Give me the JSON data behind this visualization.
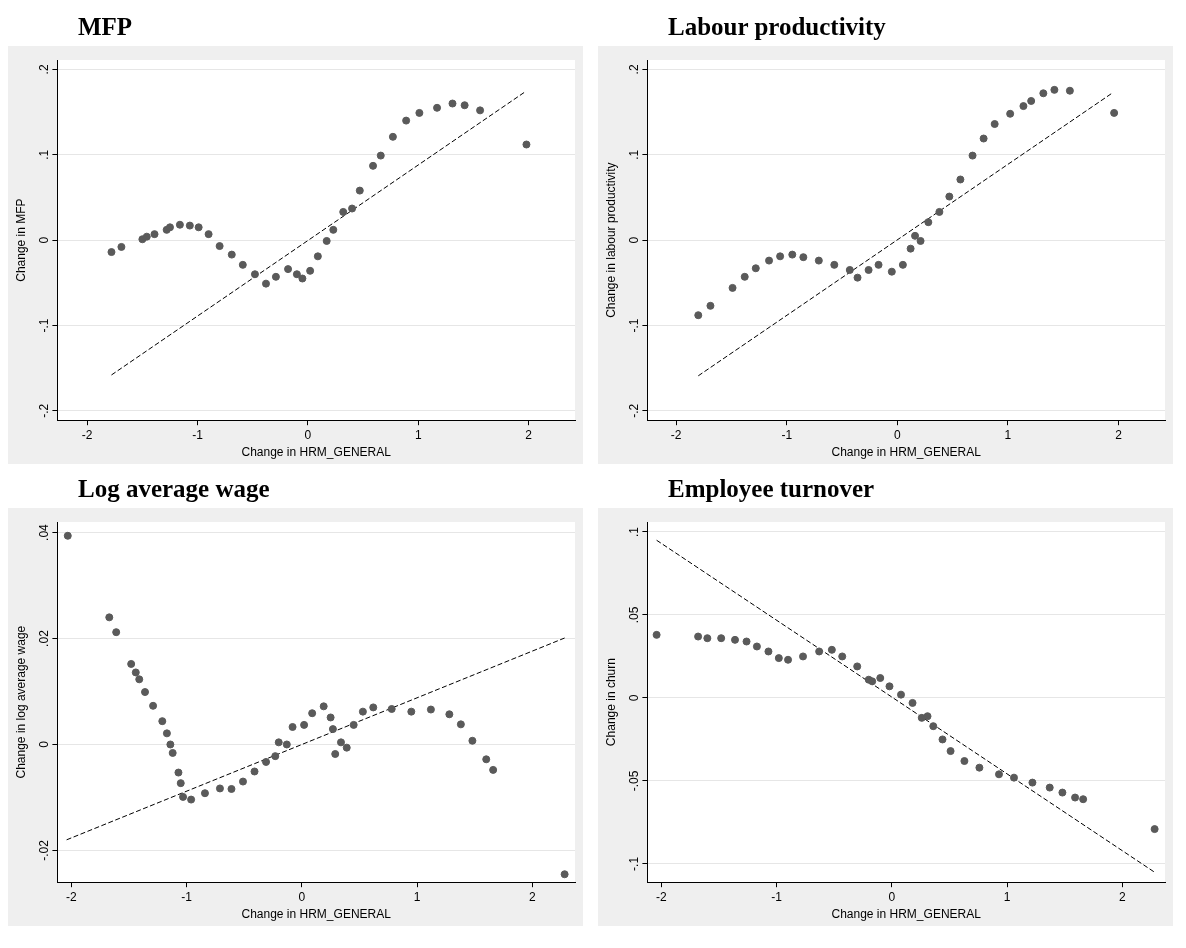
{
  "chart_data": [
    {
      "type": "scatter",
      "title": "MFP",
      "xlabel": "Change in HRM_GENERAL",
      "ylabel": "Change in MFP",
      "xlim": [
        -2.27,
        2.42
      ],
      "xticks": [
        -2,
        -1,
        0,
        1,
        2
      ],
      "ylim": [
        -0.211,
        0.211
      ],
      "yticks": [
        {
          "value": -0.2,
          "label": "-.2"
        },
        {
          "value": -0.1,
          "label": "-.1"
        },
        {
          "value": 0,
          "label": "0"
        },
        {
          "value": 0.1,
          "label": ".1"
        },
        {
          "value": 0.2,
          "label": ".2"
        }
      ],
      "grid": "y",
      "legend": false,
      "series": [
        {
          "type": "scatter",
          "marker": "circle",
          "color": "#5a5a5a",
          "x": [
            -1.78,
            -1.69,
            -1.5,
            -1.46,
            -1.39,
            -1.28,
            -1.25,
            -1.16,
            -1.07,
            -0.99,
            -0.9,
            -0.8,
            -0.69,
            -0.59,
            -0.48,
            -0.38,
            -0.29,
            -0.18,
            -0.1,
            -0.05,
            0.02,
            0.09,
            0.17,
            0.23,
            0.32,
            0.4,
            0.47,
            0.59,
            0.66,
            0.77,
            0.89,
            1.01,
            1.17,
            1.31,
            1.42,
            1.56,
            1.98
          ],
          "values": [
            -0.014,
            -0.008,
            0.001,
            0.004,
            0.007,
            0.012,
            0.015,
            0.018,
            0.017,
            0.015,
            0.007,
            -0.007,
            -0.017,
            -0.029,
            -0.04,
            -0.051,
            -0.043,
            -0.034,
            -0.04,
            -0.045,
            -0.036,
            -0.019,
            -0.001,
            0.012,
            0.033,
            0.037,
            0.058,
            0.087,
            0.099,
            0.121,
            0.14,
            0.149,
            0.155,
            0.16,
            0.158,
            0.152,
            0.112
          ]
        },
        {
          "type": "line",
          "color": "#000000",
          "line_style": "dashed",
          "x": [
            -1.78,
            1.96
          ],
          "values": [
            -0.158,
            0.173
          ]
        }
      ]
    },
    {
      "type": "scatter",
      "title": "Labour productivity",
      "xlabel": "Change in HRM_GENERAL",
      "ylabel": "Change in labour productivity",
      "xlim": [
        -2.26,
        2.42
      ],
      "xticks": [
        -2,
        -1,
        0,
        1,
        2
      ],
      "ylim": [
        -0.211,
        0.211
      ],
      "yticks": [
        {
          "value": -0.2,
          "label": "-.2"
        },
        {
          "value": -0.1,
          "label": "-.1"
        },
        {
          "value": 0,
          "label": "0"
        },
        {
          "value": 0.1,
          "label": ".1"
        },
        {
          "value": 0.2,
          "label": ".2"
        }
      ],
      "grid": "y",
      "legend": false,
      "series": [
        {
          "type": "scatter",
          "marker": "circle",
          "color": "#5a5a5a",
          "x": [
            -1.8,
            -1.69,
            -1.49,
            -1.38,
            -1.28,
            -1.16,
            -1.06,
            -0.95,
            -0.85,
            -0.71,
            -0.57,
            -0.43,
            -0.36,
            -0.26,
            -0.17,
            -0.05,
            0.05,
            0.12,
            0.16,
            0.21,
            0.28,
            0.38,
            0.47,
            0.57,
            0.68,
            0.78,
            0.88,
            1.02,
            1.14,
            1.21,
            1.32,
            1.42,
            1.56,
            1.96
          ],
          "values": [
            -0.088,
            -0.077,
            -0.056,
            -0.043,
            -0.033,
            -0.024,
            -0.019,
            -0.017,
            -0.02,
            -0.024,
            -0.029,
            -0.035,
            -0.044,
            -0.035,
            -0.029,
            -0.037,
            -0.029,
            -0.01,
            0.005,
            -0.001,
            0.021,
            0.033,
            0.051,
            0.071,
            0.099,
            0.119,
            0.136,
            0.148,
            0.157,
            0.163,
            0.172,
            0.176,
            0.175,
            0.149
          ]
        },
        {
          "type": "line",
          "color": "#000000",
          "line_style": "dashed",
          "x": [
            -1.8,
            1.94
          ],
          "values": [
            -0.159,
            0.172
          ]
        }
      ]
    },
    {
      "type": "scatter",
      "title": "Log average wage",
      "xlabel": "Change in HRM_GENERAL",
      "ylabel": "Change in log average wage",
      "xlim": [
        -2.12,
        2.37
      ],
      "xticks": [
        -2,
        -1,
        0,
        1,
        2
      ],
      "ylim": [
        -0.026,
        0.042
      ],
      "yticks": [
        {
          "value": -0.02,
          "label": "-.02"
        },
        {
          "value": 0,
          "label": "0"
        },
        {
          "value": 0.02,
          "label": ".02"
        },
        {
          "value": 0.04,
          "label": ".04"
        }
      ],
      "grid": "y",
      "legend": false,
      "series": [
        {
          "type": "scatter",
          "marker": "circle",
          "color": "#5a5a5a",
          "x": [
            -2.03,
            -1.67,
            -1.61,
            -1.48,
            -1.44,
            -1.41,
            -1.36,
            -1.29,
            -1.21,
            -1.17,
            -1.14,
            -1.12,
            -1.07,
            -1.05,
            -1.03,
            -0.96,
            -0.84,
            -0.71,
            -0.61,
            -0.51,
            -0.41,
            -0.31,
            -0.23,
            -0.2,
            -0.13,
            -0.08,
            0.02,
            0.09,
            0.19,
            0.25,
            0.27,
            0.29,
            0.34,
            0.39,
            0.45,
            0.53,
            0.62,
            0.78,
            0.95,
            1.12,
            1.28,
            1.38,
            1.48,
            1.6,
            1.66,
            2.28
          ],
          "values": [
            0.0394,
            0.024,
            0.0212,
            0.0152,
            0.0136,
            0.0123,
            0.0099,
            0.0073,
            0.0044,
            0.0021,
            0,
            -0.0016,
            -0.0053,
            -0.0073,
            -0.0099,
            -0.0104,
            -0.0092,
            -0.0083,
            -0.0084,
            -0.007,
            -0.0051,
            -0.0033,
            -0.0022,
            0.0004,
            0,
            0.0033,
            0.0037,
            0.0059,
            0.0072,
            0.0051,
            0.0029,
            -0.0018,
            0.0004,
            -0.0006,
            0.0037,
            0.0062,
            0.007,
            0.0067,
            0.0062,
            0.0066,
            0.0057,
            0.0038,
            0.0007,
            -0.0028,
            -0.0048,
            -0.0245
          ]
        },
        {
          "type": "line",
          "color": "#000000",
          "line_style": "dashed",
          "x": [
            -2.04,
            2.28
          ],
          "values": [
            -0.018,
            0.0201
          ]
        }
      ]
    },
    {
      "type": "scatter",
      "title": "Employee turnover",
      "xlabel": "Change in HRM_GENERAL",
      "ylabel": "Change in churn",
      "xlim": [
        -2.12,
        2.37
      ],
      "xticks": [
        -2,
        -1,
        0,
        1,
        2
      ],
      "ylim": [
        -0.111,
        0.106
      ],
      "yticks": [
        {
          "value": -0.1,
          "label": "-.1"
        },
        {
          "value": -0.05,
          "label": "-.05"
        },
        {
          "value": 0,
          "label": "0"
        },
        {
          "value": 0.05,
          "label": ".05"
        },
        {
          "value": 0.1,
          "label": ".1"
        }
      ],
      "grid": "y",
      "legend": false,
      "series": [
        {
          "type": "scatter",
          "marker": "circle",
          "color": "#5a5a5a",
          "x": [
            -2.04,
            -1.68,
            -1.6,
            -1.48,
            -1.36,
            -1.26,
            -1.17,
            -1.07,
            -0.98,
            -0.9,
            -0.77,
            -0.63,
            -0.52,
            -0.43,
            -0.3,
            -0.2,
            -0.17,
            -0.1,
            -0.02,
            0.08,
            0.18,
            0.26,
            0.31,
            0.36,
            0.44,
            0.51,
            0.63,
            0.76,
            0.93,
            1.06,
            1.22,
            1.37,
            1.48,
            1.59,
            1.66,
            2.28
          ],
          "values": [
            0.038,
            0.037,
            0.036,
            0.036,
            0.035,
            0.034,
            0.031,
            0.028,
            0.024,
            0.023,
            0.025,
            0.028,
            0.029,
            0.025,
            0.019,
            0.011,
            0.01,
            0.012,
            0.007,
            0.002,
            -0.003,
            -0.012,
            -0.011,
            -0.017,
            -0.025,
            -0.032,
            -0.038,
            -0.042,
            -0.046,
            -0.048,
            -0.051,
            -0.054,
            -0.057,
            -0.06,
            -0.061,
            -0.079
          ]
        },
        {
          "type": "line",
          "color": "#000000",
          "line_style": "dashed",
          "x": [
            -2.04,
            2.28
          ],
          "values": [
            0.095,
            -0.105
          ]
        }
      ]
    }
  ]
}
